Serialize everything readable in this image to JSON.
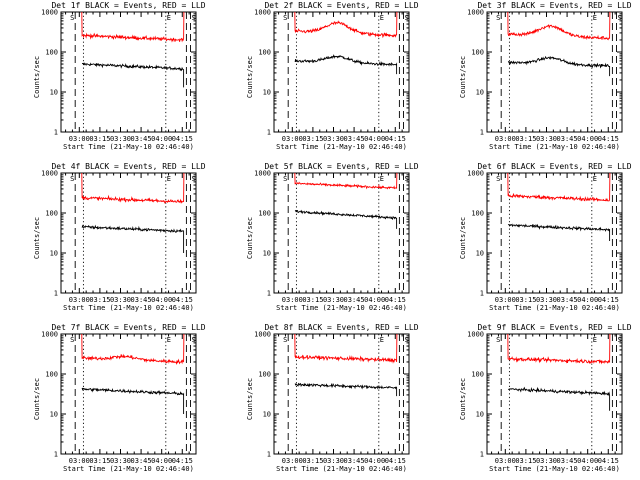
{
  "figure": {
    "xlabel": "Start Time (21-May-10 02:46:40)",
    "ylabel": "Counts/sec",
    "x_tick_labels": [
      "03:00",
      "03:15",
      "03:30",
      "03:45",
      "04:00",
      "04:15"
    ],
    "y_tick_labels": [
      "1",
      "10",
      "100",
      "1000"
    ],
    "marker_labels": {
      "start": "S",
      "end": "E"
    },
    "colors": {
      "events": "#000000",
      "lld": "#ff0000"
    }
  },
  "chart_data": [
    {
      "type": "line",
      "title": "Det 1f BLACK = Events, RED = LLD",
      "x_range": [
        "02:46:40",
        "04:25:00"
      ],
      "y_scale": "log",
      "ylim": [
        1,
        1000
      ],
      "time_range": [
        "03:02",
        "04:16"
      ],
      "markers": {
        "S_dashed": "02:57",
        "S_dotted": "03:03",
        "E_dotted": "04:03",
        "E_dashed": [
          "04:18",
          "04:21"
        ]
      },
      "series": [
        {
          "name": "Events",
          "color": "#000000",
          "start": 50,
          "end": 38,
          "hump": 0,
          "noise": 0.05,
          "drop_to": 13
        },
        {
          "name": "LLD",
          "color": "#ff0000",
          "start": 260,
          "end": 200,
          "hump": 0,
          "noise": 0.06,
          "rise_to": 1000
        }
      ]
    },
    {
      "type": "line",
      "title": "Det 2f BLACK = Events, RED = LLD",
      "x_range": [
        "02:46:40",
        "04:25:00"
      ],
      "y_scale": "log",
      "ylim": [
        1,
        1000
      ],
      "time_range": [
        "03:02",
        "04:16"
      ],
      "markers": {
        "S_dashed": "02:57",
        "S_dotted": "03:03",
        "E_dotted": "04:03",
        "E_dashed": [
          "04:18",
          "04:21"
        ]
      },
      "series": [
        {
          "name": "Events",
          "color": "#000000",
          "start": 60,
          "end": 48,
          "hump": 0.15,
          "noise": 0.05,
          "drop_to": 28
        },
        {
          "name": "LLD",
          "color": "#ff0000",
          "start": 330,
          "end": 260,
          "hump": 0.25,
          "noise": 0.06,
          "rise_to": 1000
        }
      ]
    },
    {
      "type": "line",
      "title": "Det 3f BLACK = Events, RED = LLD",
      "x_range": [
        "02:46:40",
        "04:25:00"
      ],
      "y_scale": "log",
      "ylim": [
        1,
        1000
      ],
      "time_range": [
        "03:02",
        "04:16"
      ],
      "markers": {
        "S_dashed": "02:57",
        "S_dotted": "03:03",
        "E_dotted": "04:03",
        "E_dashed": [
          "04:18",
          "04:21"
        ]
      },
      "series": [
        {
          "name": "Events",
          "color": "#000000",
          "start": 55,
          "end": 45,
          "hump": 0.15,
          "noise": 0.05,
          "drop_to": 25
        },
        {
          "name": "LLD",
          "color": "#ff0000",
          "start": 280,
          "end": 220,
          "hump": 0.25,
          "noise": 0.06,
          "rise_to": 1000
        }
      ]
    },
    {
      "type": "line",
      "title": "Det 4f BLACK = Events, RED = LLD",
      "x_range": [
        "02:46:40",
        "04:25:00"
      ],
      "y_scale": "log",
      "ylim": [
        1,
        1000
      ],
      "time_range": [
        "03:02",
        "04:16"
      ],
      "markers": {
        "S_dashed": "02:57",
        "S_dotted": "03:03",
        "E_dotted": "04:03",
        "E_dashed": [
          "04:18",
          "04:21"
        ]
      },
      "series": [
        {
          "name": "Events",
          "color": "#000000",
          "start": 45,
          "end": 35,
          "hump": 0,
          "noise": 0.05,
          "drop_to": 10
        },
        {
          "name": "LLD",
          "color": "#ff0000",
          "start": 240,
          "end": 190,
          "hump": 0,
          "noise": 0.06,
          "rise_to": 1000
        }
      ]
    },
    {
      "type": "line",
      "title": "Det 5f BLACK = Events, RED = LLD",
      "x_range": [
        "02:46:40",
        "04:25:00"
      ],
      "y_scale": "log",
      "ylim": [
        1,
        1000
      ],
      "time_range": [
        "03:02",
        "04:16"
      ],
      "markers": {
        "S_dashed": "02:57",
        "S_dotted": "03:03",
        "E_dotted": "04:03",
        "E_dashed": [
          "04:18",
          "04:21"
        ]
      },
      "series": [
        {
          "name": "Events",
          "color": "#000000",
          "start": 110,
          "end": 75,
          "hump": 0,
          "noise": 0.04,
          "drop_to": 40
        },
        {
          "name": "LLD",
          "color": "#ff0000",
          "start": 550,
          "end": 420,
          "hump": 0,
          "noise": 0.04,
          "rise_to": 1000
        }
      ]
    },
    {
      "type": "line",
      "title": "Det 6f BLACK = Events, RED = LLD",
      "x_range": [
        "02:46:40",
        "04:25:00"
      ],
      "y_scale": "log",
      "ylim": [
        1,
        1000
      ],
      "time_range": [
        "03:02",
        "04:16"
      ],
      "markers": {
        "S_dashed": "02:57",
        "S_dotted": "03:03",
        "E_dotted": "04:03",
        "E_dashed": [
          "04:18",
          "04:21"
        ]
      },
      "series": [
        {
          "name": "Events",
          "color": "#000000",
          "start": 50,
          "end": 38,
          "hump": 0,
          "noise": 0.05,
          "drop_to": 20
        },
        {
          "name": "LLD",
          "color": "#ff0000",
          "start": 270,
          "end": 210,
          "hump": 0,
          "noise": 0.06,
          "rise_to": 1000
        }
      ]
    },
    {
      "type": "line",
      "title": "Det 7f BLACK = Events, RED = LLD",
      "x_range": [
        "02:46:40",
        "04:25:00"
      ],
      "y_scale": "log",
      "ylim": [
        1,
        1000
      ],
      "time_range": [
        "03:02",
        "04:16"
      ],
      "markers": {
        "S_dashed": "02:57",
        "S_dotted": "03:03",
        "E_dotted": "04:03",
        "E_dashed": [
          "04:18",
          "04:21"
        ]
      },
      "series": [
        {
          "name": "Events",
          "color": "#000000",
          "start": 42,
          "end": 32,
          "hump": 0,
          "noise": 0.05,
          "drop_to": 10
        },
        {
          "name": "LLD",
          "color": "#ff0000",
          "start": 250,
          "end": 200,
          "hump": 0.08,
          "noise": 0.06,
          "rise_to": 1000
        }
      ]
    },
    {
      "type": "line",
      "title": "Det 8f BLACK = Events, RED = LLD",
      "x_range": [
        "02:46:40",
        "04:25:00"
      ],
      "y_scale": "log",
      "ylim": [
        1,
        1000
      ],
      "time_range": [
        "03:02",
        "04:16"
      ],
      "markers": {
        "S_dashed": "02:57",
        "S_dotted": "03:03",
        "E_dotted": "04:03",
        "E_dashed": [
          "04:18",
          "04:21"
        ]
      },
      "series": [
        {
          "name": "Events",
          "color": "#000000",
          "start": 55,
          "end": 45,
          "hump": 0,
          "noise": 0.05,
          "drop_to": 28
        },
        {
          "name": "LLD",
          "color": "#ff0000",
          "start": 270,
          "end": 220,
          "hump": 0,
          "noise": 0.06,
          "rise_to": 1000
        }
      ]
    },
    {
      "type": "line",
      "title": "Det 9f BLACK = Events, RED = LLD",
      "x_range": [
        "02:46:40",
        "04:25:00"
      ],
      "y_scale": "log",
      "ylim": [
        1,
        1000
      ],
      "time_range": [
        "03:02",
        "04:16"
      ],
      "markers": {
        "S_dashed": "02:57",
        "S_dotted": "03:03",
        "E_dotted": "04:03",
        "E_dashed": [
          "04:18",
          "04:21"
        ]
      },
      "series": [
        {
          "name": "Events",
          "color": "#000000",
          "start": 42,
          "end": 32,
          "hump": 0,
          "noise": 0.05,
          "drop_to": 12
        },
        {
          "name": "LLD",
          "color": "#ff0000",
          "start": 240,
          "end": 200,
          "hump": 0,
          "noise": 0.06,
          "rise_to": 1000
        }
      ]
    }
  ]
}
